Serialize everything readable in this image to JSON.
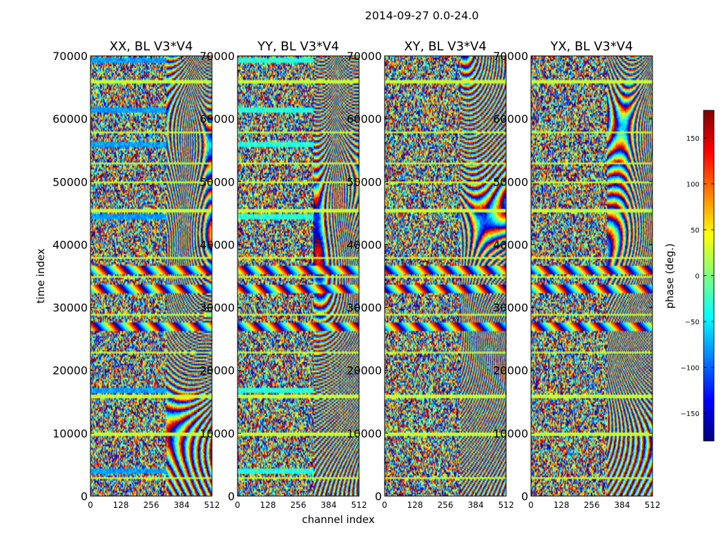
{
  "figure": {
    "suptitle": "2014-09-27 0.0-24.0",
    "xlabel": "channel index",
    "ylabel": "time index"
  },
  "chart_data": {
    "type": "heatmap",
    "xlim": [
      0,
      512
    ],
    "ylim": [
      0,
      70000
    ],
    "x_ticks": [
      0,
      128,
      256,
      384,
      512
    ],
    "y_ticks": [
      0,
      10000,
      20000,
      30000,
      40000,
      50000,
      60000,
      70000
    ],
    "x_tick_labels": [
      "0",
      "128",
      "256",
      "384",
      "512"
    ],
    "y_tick_labels": [
      "0",
      "10000",
      "20000",
      "30000",
      "40000",
      "50000",
      "60000",
      "70000"
    ],
    "panels": [
      {
        "title": "XX, BL V3*V4"
      },
      {
        "title": "YY, BL V3*V4"
      },
      {
        "title": "XY, BL V3*V4"
      },
      {
        "title": "YX, BL V3*V4"
      }
    ],
    "colorbar": {
      "label": "phase (deg.)",
      "range": [
        -180,
        180
      ],
      "ticks": [
        150,
        100,
        50,
        0,
        -50,
        -100,
        -150
      ],
      "tick_labels": [
        "150",
        "100",
        "50",
        "0",
        "−50",
        "−100",
        "−150"
      ],
      "colormap": "jet",
      "colors": [
        "#00007f",
        "#0000ff",
        "#007fff",
        "#00ffff",
        "#7fff7f",
        "#ffff00",
        "#ff7f00",
        "#ff0000",
        "#7f0000"
      ]
    },
    "bands": {
      "calibrator_rows_time_index": [
        4200,
        17000,
        44500,
        56000,
        61500,
        69500
      ],
      "strong_phase_rows_time_index": [
        27000,
        33000,
        36000
      ],
      "flagged_rows_time_index": [
        3000,
        10000,
        16000,
        23000,
        29000,
        35000,
        38000,
        45500,
        50000,
        53000,
        58000,
        66000
      ]
    }
  }
}
